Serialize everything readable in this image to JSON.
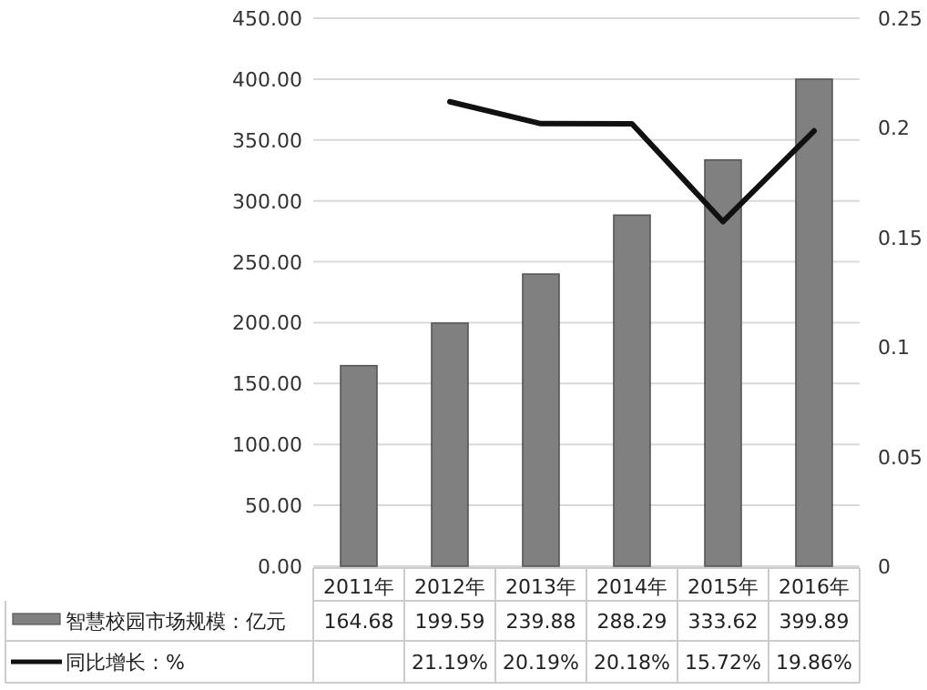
{
  "chart_data": {
    "type": "bar",
    "categories": [
      "2011年",
      "2012年",
      "2013年",
      "2014年",
      "2015年",
      "2016年"
    ],
    "series": [
      {
        "name": "智慧校园市场规模：亿元",
        "color": "#808080",
        "values": [
          164.68,
          199.59,
          239.88,
          288.29,
          333.62,
          399.89
        ],
        "value_labels": [
          "164.68",
          "199.59",
          "239.88",
          "288.29",
          "333.62",
          "399.89"
        ]
      },
      {
        "name": "同比增长：%",
        "type": "line",
        "axis": "y2",
        "color": "#111111",
        "values": [
          null,
          0.2119,
          0.2019,
          0.2018,
          0.1572,
          0.1986
        ],
        "value_labels": [
          null,
          "21.19%",
          "20.19%",
          "20.18%",
          "15.72%",
          "19.86%"
        ]
      }
    ],
    "ylim": [
      0,
      450
    ],
    "yticks": [
      {
        "value": 0,
        "label": "0.00"
      },
      {
        "value": 50,
        "label": "50.00"
      },
      {
        "value": 100,
        "label": "100.00"
      },
      {
        "value": 150,
        "label": "150.00"
      },
      {
        "value": 200,
        "label": "200.00"
      },
      {
        "value": 250,
        "label": "250.00"
      },
      {
        "value": 300,
        "label": "300.00"
      },
      {
        "value": 350,
        "label": "350.00"
      },
      {
        "value": 400,
        "label": "400.00"
      },
      {
        "value": 450,
        "label": "450.00"
      }
    ],
    "y2lim": [
      0,
      0.25
    ],
    "y2ticks": [
      {
        "value": 0,
        "label": "0"
      },
      {
        "value": 0.05,
        "label": "0.05"
      },
      {
        "value": 0.1,
        "label": "0.1"
      },
      {
        "value": 0.15,
        "label": "0.15"
      },
      {
        "value": 0.2,
        "label": "0.2"
      },
      {
        "value": 0.25,
        "label": "0.25"
      }
    ],
    "grid": "y",
    "legend": "bottom"
  }
}
